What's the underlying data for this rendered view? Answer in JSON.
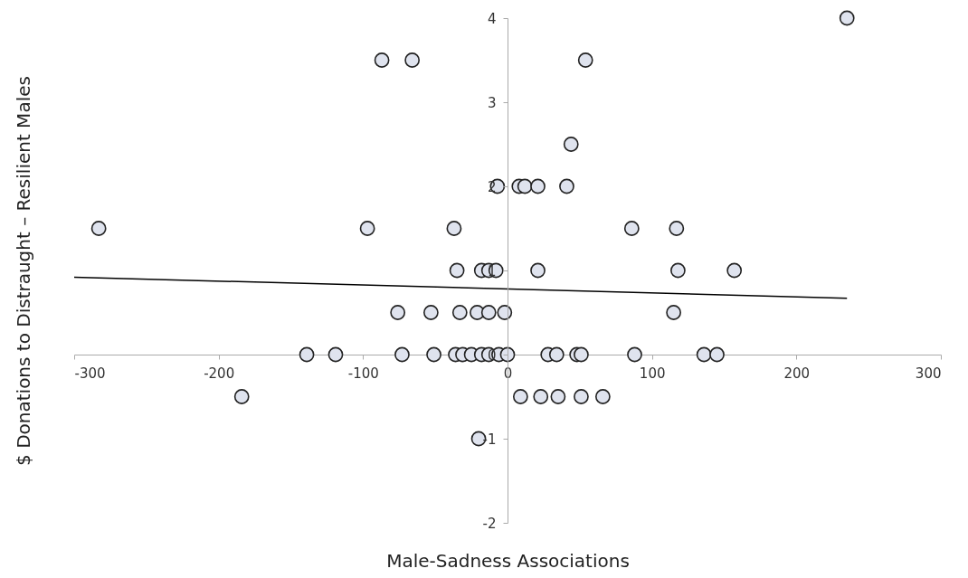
{
  "chart_data": {
    "type": "scatter",
    "xlabel": "Male-Sadness Associations",
    "ylabel": "$ Donations to Distraught – Resilient Males",
    "xlim": [
      -300,
      300
    ],
    "xticks": [
      -300,
      -200,
      -100,
      0,
      100,
      200,
      300
    ],
    "ylim": [
      -2,
      4
    ],
    "yticks": [
      -2,
      -1,
      0,
      1,
      2,
      3,
      4
    ],
    "grid": false,
    "series": [
      {
        "marker": "circle",
        "color": "#dfe3ee",
        "x": [
          -283,
          -97,
          -37,
          -87,
          -66,
          54,
          235,
          44,
          -7,
          8,
          12,
          21,
          41,
          86,
          117,
          -35,
          -18,
          -13,
          -8,
          21,
          118,
          157,
          -76,
          -53,
          -33,
          -21,
          -13,
          -2,
          115,
          -139,
          -119,
          -73,
          -51,
          -36,
          -31,
          -25,
          -18,
          -13,
          -6,
          0,
          28,
          34,
          48,
          51,
          88,
          136,
          145,
          -184,
          9,
          23,
          35,
          51,
          66,
          -20
        ],
        "values": [
          1.5,
          1.5,
          1.5,
          3.5,
          3.5,
          3.5,
          4,
          2.5,
          2,
          2,
          2,
          2,
          2,
          1.5,
          1.5,
          1,
          1,
          1,
          1,
          1,
          1,
          1,
          0.5,
          0.5,
          0.5,
          0.5,
          0.5,
          0.5,
          0.5,
          0,
          0,
          0,
          0,
          0,
          0,
          0,
          0,
          0,
          0,
          0,
          0,
          0,
          0,
          0,
          0,
          0,
          0,
          -0.5,
          -0.5,
          -0.5,
          -0.5,
          -0.5,
          -0.5,
          -1
        ]
      },
      {
        "type": "line",
        "color": "#000000",
        "x": [
          -300,
          235
        ],
        "values": [
          0.92,
          0.67
        ]
      }
    ]
  }
}
